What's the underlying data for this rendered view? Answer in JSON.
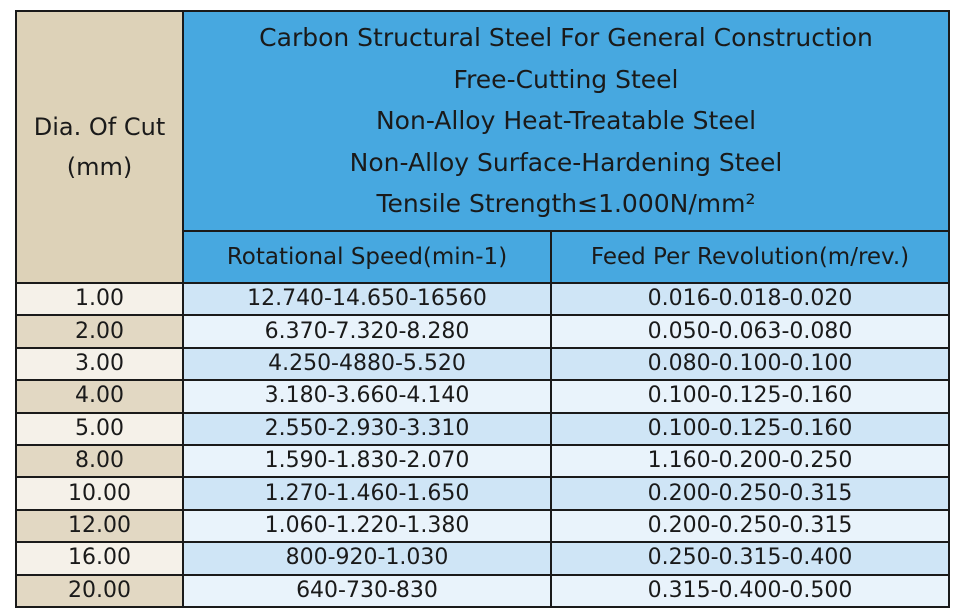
{
  "table": {
    "header": {
      "dia_line1": "Dia. Of Cut",
      "dia_line2": "(mm)",
      "description_lines": [
        "Carbon Structural Steel For General Construction",
        "Free-Cutting Steel",
        "Non-Alloy Heat-Treatable Steel",
        "Non-Alloy Surface-Hardening Steel",
        "Tensile Strength≤1.000N/mm²"
      ],
      "col_speed": "Rotational Speed(min-1)",
      "col_feed": "Feed Per Revolution(m/rev.)"
    },
    "rows": [
      {
        "dia": "1.00",
        "speed": "12.740-14.650-16560",
        "feed": "0.016-0.018-0.020"
      },
      {
        "dia": "2.00",
        "speed": "6.370-7.320-8.280",
        "feed": "0.050-0.063-0.080"
      },
      {
        "dia": "3.00",
        "speed": "4.250-4880-5.520",
        "feed": "0.080-0.100-0.100"
      },
      {
        "dia": "4.00",
        "speed": "3.180-3.660-4.140",
        "feed": "0.100-0.125-0.160"
      },
      {
        "dia": "5.00",
        "speed": "2.550-2.930-3.310",
        "feed": "0.100-0.125-0.160"
      },
      {
        "dia": "8.00",
        "speed": "1.590-1.830-2.070",
        "feed": "1.160-0.200-0.250"
      },
      {
        "dia": "10.00",
        "speed": "1.270-1.460-1.650",
        "feed": "0.200-0.250-0.315"
      },
      {
        "dia": "12.00",
        "speed": "1.060-1.220-1.380",
        "feed": "0.200-0.250-0.315"
      },
      {
        "dia": "16.00",
        "speed": "800-920-1.030",
        "feed": "0.250-0.315-0.400"
      },
      {
        "dia": "20.00",
        "speed": "640-730-830",
        "feed": "0.315-0.400-0.500"
      }
    ]
  }
}
